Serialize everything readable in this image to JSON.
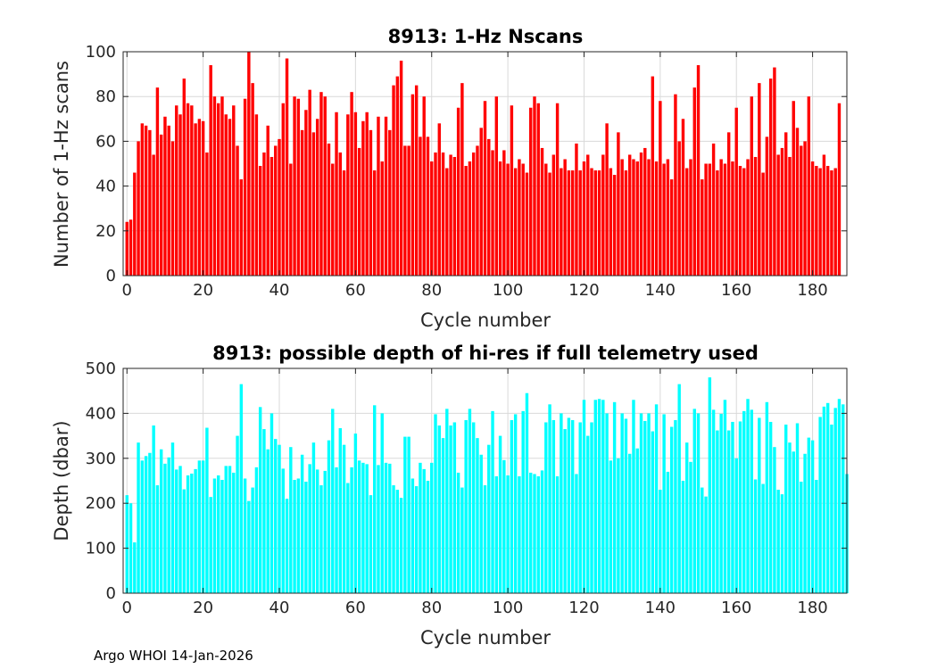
{
  "chart_data": [
    {
      "type": "bar",
      "title": "8913: 1-Hz Nscans",
      "xlabel": "Cycle number",
      "ylabel": "Number of 1-Hz scans",
      "xlim": [
        -1,
        189
      ],
      "ylim": [
        0,
        100
      ],
      "xticks": [
        0,
        20,
        40,
        60,
        80,
        100,
        120,
        140,
        160,
        180
      ],
      "yticks": [
        0,
        20,
        40,
        60,
        80,
        100
      ],
      "grid": true,
      "bar_color": "#ff0000",
      "x_start": 0,
      "values": [
        24,
        25,
        46,
        60,
        68,
        67,
        65,
        54,
        84,
        63,
        71,
        67,
        60,
        76,
        72,
        88,
        77,
        76,
        68,
        70,
        69,
        55,
        94,
        80,
        77,
        80,
        72,
        70,
        76,
        58,
        43,
        79,
        100,
        86,
        72,
        49,
        55,
        67,
        53,
        58,
        61,
        77,
        97,
        50,
        80,
        79,
        65,
        74,
        83,
        64,
        70,
        82,
        80,
        59,
        50,
        73,
        55,
        47,
        72,
        82,
        73,
        57,
        69,
        73,
        65,
        47,
        71,
        51,
        71,
        65,
        85,
        89,
        96,
        58,
        58,
        81,
        85,
        62,
        80,
        62,
        51,
        55,
        68,
        55,
        48,
        54,
        53,
        75,
        86,
        49,
        51,
        55,
        58,
        66,
        78,
        61,
        56,
        80,
        51,
        56,
        50,
        76,
        48,
        52,
        50,
        46,
        75,
        80,
        77,
        57,
        50,
        46,
        54,
        77,
        48,
        52,
        47,
        47,
        59,
        47,
        51,
        54,
        48,
        47,
        47,
        54,
        68,
        48,
        45,
        64,
        52,
        47,
        54,
        52,
        51,
        55,
        57,
        52,
        89,
        51,
        78,
        50,
        52,
        43,
        81,
        60,
        70,
        48,
        52,
        84,
        94,
        43,
        50,
        50,
        59,
        47,
        52,
        50,
        64,
        51,
        75,
        49,
        48,
        52,
        80,
        53,
        86,
        46,
        62,
        88,
        93,
        54,
        57,
        64,
        53,
        78,
        66,
        58,
        60,
        80,
        51,
        49,
        48,
        54,
        49,
        47,
        48,
        77
      ]
    },
    {
      "type": "bar",
      "title": "8913: possible depth of hi-res if full telemetry used",
      "xlabel": "Cycle number",
      "ylabel": "Depth (dbar)",
      "xlim": [
        -1,
        189
      ],
      "ylim": [
        0,
        500
      ],
      "xticks": [
        0,
        20,
        40,
        60,
        80,
        100,
        120,
        140,
        160,
        180
      ],
      "yticks": [
        0,
        100,
        200,
        300,
        400,
        500
      ],
      "grid": true,
      "bar_color": "#00ffff",
      "x_start": 0,
      "values": [
        218,
        200,
        113,
        335,
        295,
        305,
        312,
        373,
        240,
        320,
        288,
        302,
        335,
        275,
        283,
        231,
        262,
        266,
        276,
        295,
        295,
        368,
        214,
        255,
        262,
        252,
        283,
        283,
        268,
        350,
        465,
        255,
        205,
        235,
        280,
        414,
        365,
        320,
        400,
        343,
        330,
        277,
        210,
        325,
        252,
        255,
        308,
        248,
        287,
        335,
        275,
        240,
        272,
        340,
        410,
        280,
        367,
        330,
        245,
        280,
        355,
        295,
        290,
        287,
        218,
        418,
        285,
        400,
        290,
        288,
        240,
        230,
        212,
        348,
        348,
        255,
        238,
        290,
        276,
        250,
        290,
        398,
        373,
        345,
        410,
        373,
        380,
        268,
        235,
        385,
        410,
        380,
        345,
        308,
        240,
        330,
        405,
        260,
        350,
        296,
        262,
        385,
        398,
        260,
        405,
        445,
        268,
        265,
        260,
        273,
        380,
        420,
        385,
        260,
        400,
        365,
        390,
        385,
        265,
        380,
        430,
        350,
        380,
        430,
        432,
        430,
        400,
        295,
        425,
        300,
        400,
        388,
        310,
        430,
        322,
        400,
        383,
        400,
        360,
        420,
        230,
        398,
        270,
        370,
        385,
        465,
        250,
        335,
        292,
        410,
        400,
        235,
        215,
        480,
        408,
        362,
        399,
        430,
        362,
        381,
        300,
        382,
        405,
        432,
        408,
        253,
        390,
        243,
        425,
        381,
        325,
        230,
        220,
        375,
        335,
        315,
        378,
        248,
        310,
        346,
        340,
        252,
        392,
        415,
        423,
        375,
        412,
        432,
        420,
        265
      ]
    }
  ],
  "footer": "Argo WHOI 14-Jan-2026"
}
